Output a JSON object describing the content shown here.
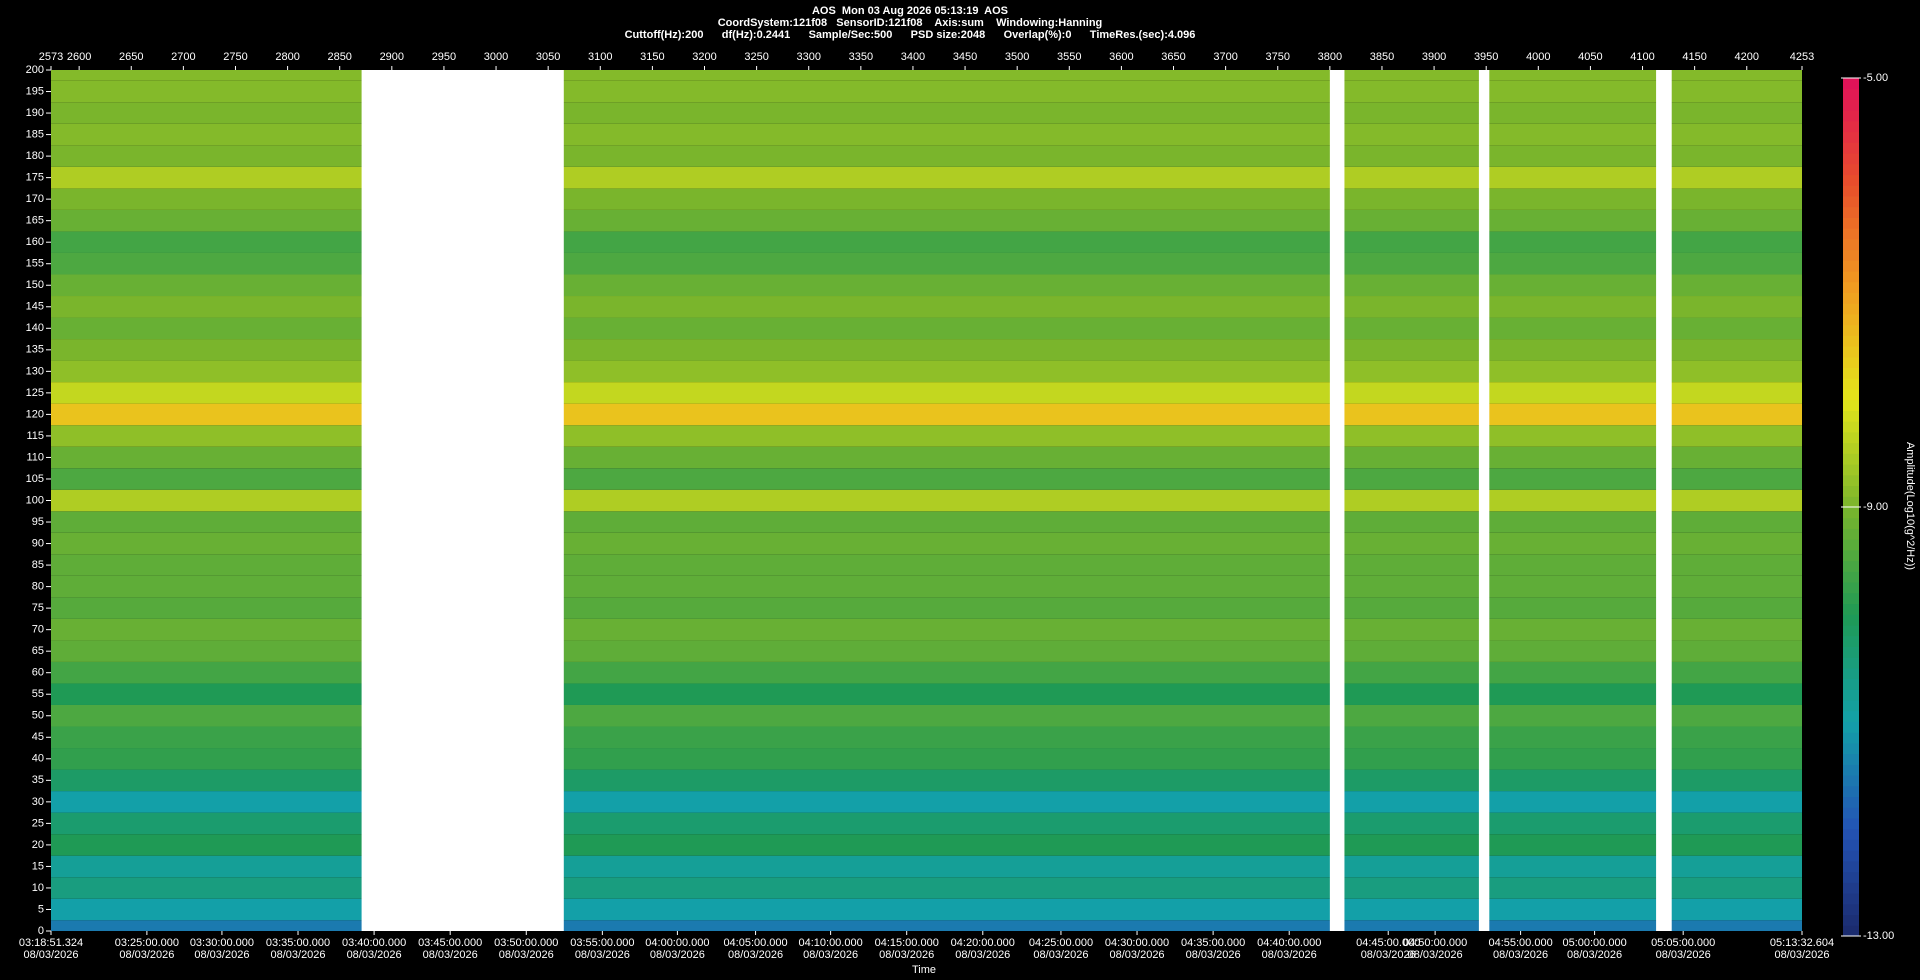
{
  "header": {
    "title": "AOS  Mon 03 Aug 2026 05:13:19  AOS",
    "line2": "CoordSystem:121f08   SensorID:121f08    Axis:sum    Windowing:Hanning",
    "line3": "Cuttoff(Hz):200      df(Hz):0.2441      Sample/Sec:500      PSD size:2048      Overlap(%):0      TimeRes.(sec):4.096"
  },
  "chart_data": {
    "type": "spectrogram",
    "x_label": "Time",
    "date_label": "08/03/2026",
    "xlim": [
      2573,
      4253
    ],
    "xticks": [
      2573,
      2600,
      2650,
      2700,
      2750,
      2800,
      2850,
      2900,
      2950,
      3000,
      3050,
      3100,
      3150,
      3200,
      3250,
      3300,
      3350,
      3400,
      3450,
      3500,
      3550,
      3600,
      3650,
      3700,
      3750,
      3800,
      3850,
      3900,
      3950,
      4000,
      4050,
      4100,
      4150,
      4200,
      4253
    ],
    "time_ticks": [
      {
        "value": 2573,
        "label": "03:18:51.324"
      },
      {
        "value": 2665,
        "label": "03:25:00.000"
      },
      {
        "value": 2737,
        "label": "03:30:00.000"
      },
      {
        "value": 2810,
        "label": "03:35:00.000"
      },
      {
        "value": 2883,
        "label": "03:40:00.000"
      },
      {
        "value": 2956,
        "label": "03:45:00.000"
      },
      {
        "value": 3029,
        "label": "03:50:00.000"
      },
      {
        "value": 3102,
        "label": "03:55:00.000"
      },
      {
        "value": 3174,
        "label": "04:00:00.000"
      },
      {
        "value": 3249,
        "label": "04:05:00.000"
      },
      {
        "value": 3321,
        "label": "04:10:00.000"
      },
      {
        "value": 3394,
        "label": "04:15:00.000"
      },
      {
        "value": 3467,
        "label": "04:20:00.000"
      },
      {
        "value": 3542,
        "label": "04:25:00.000"
      },
      {
        "value": 3615,
        "label": "04:30:00.000"
      },
      {
        "value": 3688,
        "label": "04:35:00.000"
      },
      {
        "value": 3761,
        "label": "04:40:00.000"
      },
      {
        "value": 3856,
        "label": "04:45:00.000"
      },
      {
        "value": 3901,
        "label": "04:50:00.000"
      },
      {
        "value": 3983,
        "label": "04:55:00.000"
      },
      {
        "value": 4054,
        "label": "05:00:00.000"
      },
      {
        "value": 4139,
        "label": "05:05:00.000"
      },
      {
        "value": 4253,
        "label": "05:13:32.604"
      }
    ],
    "ylim": [
      0,
      200
    ],
    "yticks": [
      0,
      5,
      10,
      15,
      20,
      25,
      30,
      35,
      40,
      45,
      50,
      55,
      60,
      65,
      70,
      75,
      80,
      85,
      90,
      95,
      100,
      105,
      110,
      115,
      120,
      125,
      130,
      135,
      140,
      145,
      150,
      155,
      160,
      165,
      170,
      175,
      180,
      185,
      190,
      195,
      200
    ],
    "frequencies": [
      0,
      5,
      10,
      15,
      20,
      25,
      30,
      35,
      40,
      45,
      50,
      55,
      60,
      65,
      70,
      75,
      80,
      85,
      90,
      95,
      100,
      105,
      110,
      115,
      120,
      125,
      130,
      135,
      140,
      145,
      150,
      155,
      160,
      165,
      170,
      175,
      180,
      185,
      190,
      195,
      200
    ],
    "amplitude": [
      -11.5,
      -11,
      -10.5,
      -10.8,
      -10,
      -10.3,
      -11,
      -10.2,
      -9.8,
      -9.7,
      -9.5,
      -10,
      -9.6,
      -9.3,
      -9.2,
      -9.4,
      -9.3,
      -9.3,
      -9.2,
      -9.3,
      -8.5,
      -9.5,
      -9.2,
      -8.8,
      -7.5,
      -8.3,
      -8.8,
      -9,
      -9.2,
      -9,
      -9.2,
      -9.5,
      -9.6,
      -9.2,
      -9,
      -8.5,
      -9,
      -8.9,
      -9,
      -8.9,
      -8.9
    ],
    "gaps": [
      [
        2871,
        3065
      ],
      [
        3800,
        3814
      ],
      [
        3943,
        3953
      ],
      [
        4113,
        4128
      ]
    ],
    "colorbar_label": "Amplitude(Log10(g^2/Hz))",
    "clim": [
      -13,
      -5
    ],
    "cticks": [
      {
        "value": -5,
        "label": "-5.00"
      },
      {
        "value": -9,
        "label": "-9.00"
      },
      {
        "value": -13,
        "label": "-13.00"
      }
    ],
    "colorscale": [
      "#1b2a6b",
      "#2353b5",
      "#13a0a8",
      "#1f9a55",
      "#7ab52c",
      "#e3e51a",
      "#f0a020",
      "#e8502a",
      "#e0105a"
    ],
    "gap_color": "#ffffff"
  }
}
